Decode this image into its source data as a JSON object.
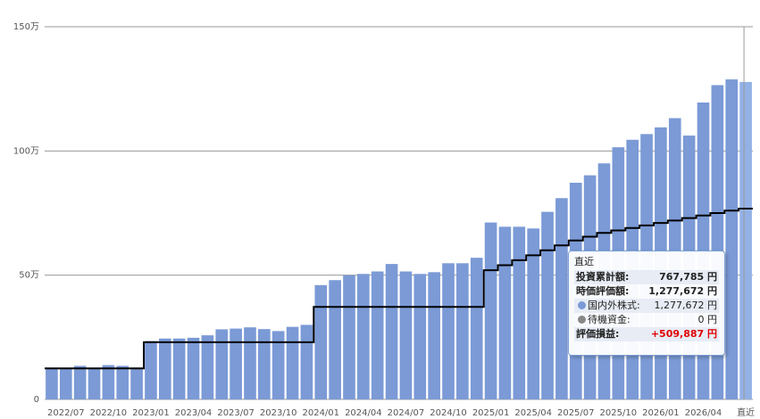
{
  "chart_data": {
    "type": "bar",
    "y_ticks": [
      "150万",
      "100万",
      "50万",
      "0"
    ],
    "y_tick_values": [
      1500000,
      1000000,
      500000,
      0
    ],
    "ylim": [
      0,
      1500000
    ],
    "x_tick_labels": [
      "2022/07",
      "2022/10",
      "2023/01",
      "2023/04",
      "2023/07",
      "2023/10",
      "2024/01",
      "2024/04",
      "2024/07",
      "2024/10",
      "2025/01",
      "2025/04",
      "2025/07",
      "2025/10",
      "2026/01",
      "2026/04",
      "直近"
    ],
    "x_tick_indices": [
      1,
      4,
      7,
      10,
      13,
      16,
      19,
      22,
      25,
      28,
      31,
      34,
      37,
      40,
      43,
      46,
      49
    ],
    "series": [
      {
        "type": "bar",
        "color": "#7b9ad6",
        "values": [
          128000,
          128000,
          135000,
          128000,
          138000,
          135000,
          128000,
          235000,
          245000,
          245000,
          248000,
          258000,
          282000,
          285000,
          290000,
          283000,
          275000,
          292000,
          300000,
          460000,
          480000,
          500000,
          505000,
          515000,
          545000,
          515000,
          505000,
          512000,
          548000,
          548000,
          570000,
          712000,
          695000,
          695000,
          688000,
          755000,
          810000,
          872000,
          902000,
          950000,
          1015000,
          1045000,
          1068000,
          1095000,
          1132000,
          1062000,
          1195000,
          1265000,
          1288000,
          1277672
        ]
      },
      {
        "type": "step-line",
        "color": "#000000",
        "values": [
          125000,
          125000,
          125000,
          125000,
          125000,
          125000,
          125000,
          230000,
          230000,
          230000,
          230000,
          230000,
          230000,
          230000,
          230000,
          230000,
          230000,
          230000,
          230000,
          372000,
          372000,
          372000,
          372000,
          372000,
          372000,
          372000,
          372000,
          372000,
          372000,
          372000,
          372000,
          520000,
          540000,
          560000,
          580000,
          600000,
          620000,
          640000,
          655000,
          670000,
          680000,
          690000,
          700000,
          710000,
          720000,
          730000,
          740000,
          750000,
          760000,
          767785
        ]
      }
    ],
    "highlight_bar": {
      "index": 49,
      "color": "#93b1e6"
    }
  },
  "tooltip": {
    "title": "直近",
    "rows": [
      {
        "label": "投資累計額:",
        "value": "767,785 円"
      },
      {
        "label": "時価評価額:",
        "value": "1,277,672 円"
      },
      {
        "label": "国内外株式:",
        "value": "1,277,672 円",
        "dot_color": "#7b9ad6"
      },
      {
        "label": "待機資金:",
        "value": "0 円",
        "dot_color": "#888888"
      },
      {
        "label": "評価損益:",
        "value": "+509,887 円",
        "value_color": "#e00000"
      }
    ]
  }
}
